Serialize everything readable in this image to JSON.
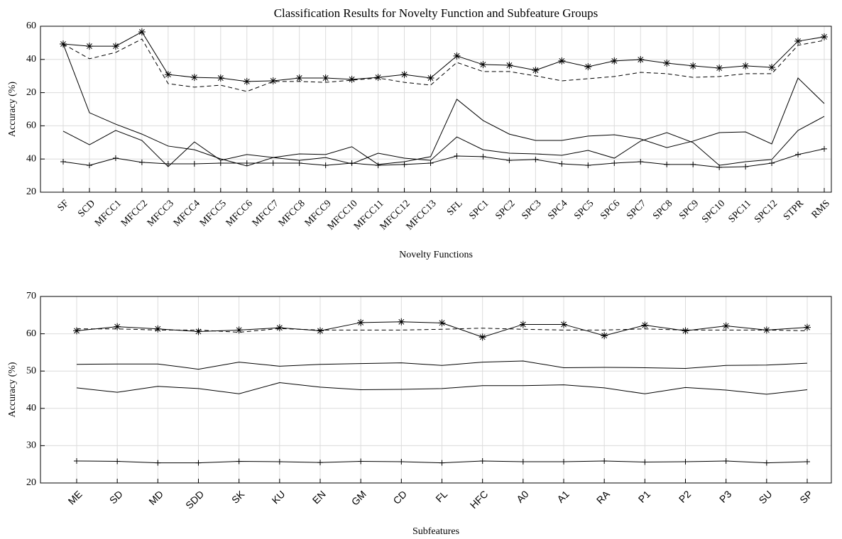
{
  "chart_data": [
    {
      "type": "line",
      "title": "Classification Results for Novelty Function and Subfeature Groups",
      "x_label": "Novelty Functions",
      "y_label": "Accuracy (%)",
      "categories": [
        "SF",
        "SCD",
        "MFCC1",
        "MFCC2",
        "MFCC3",
        "MFCC4",
        "MFCC5",
        "MFCC6",
        "MFCC7",
        "MFCC8",
        "MFCC9",
        "MFCC10",
        "MFCC11",
        "MFCC12",
        "MFCC13",
        "SFL",
        "SPC1",
        "SPC2",
        "SPC3",
        "SPC4",
        "SPC5",
        "SPC6",
        "SPC7",
        "SPC8",
        "SPC9",
        "SPC10",
        "SPC11",
        "SPC12",
        "STPR",
        "RMS"
      ],
      "ylim": [
        20,
        120
      ],
      "yticks": [
        20,
        40,
        60,
        {
          "value": 80,
          "label": "20"
        },
        {
          "value": 100,
          "label": "40"
        },
        {
          "value": 120,
          "label": "60"
        }
      ],
      "grid": true,
      "series": [
        {
          "color": "#000000",
          "marker": "*",
          "dashed": false,
          "values": [
            109.3,
            108.0,
            108.0,
            116.6,
            90.9,
            89.2,
            88.8,
            86.7,
            87.1,
            88.8,
            88.8,
            88.0,
            89.2,
            90.9,
            88.8,
            102.1,
            96.9,
            96.5,
            93.5,
            99.1,
            95.6,
            99.1,
            99.9,
            97.8,
            96.1,
            94.8,
            96.1,
            95.2,
            111.0,
            113.6
          ]
        },
        {
          "color": "#000000",
          "marker": "none",
          "dashed": true,
          "values": [
            109.3,
            100.4,
            104.2,
            112.3,
            85.4,
            83.3,
            84.5,
            80.7,
            86.7,
            86.7,
            86.2,
            87.5,
            88.8,
            86.2,
            84.5,
            98.2,
            92.7,
            92.7,
            90.1,
            87.1,
            88.4,
            89.7,
            92.2,
            91.4,
            89.2,
            89.7,
            91.4,
            91.4,
            108.5,
            111.5
          ]
        },
        {
          "color": "#000000",
          "marker": "none",
          "dashed": false,
          "values": [
            109.3,
            67.9,
            61.0,
            55.0,
            47.8,
            45.6,
            40.1,
            35.8,
            40.9,
            43.1,
            42.7,
            47.4,
            36.7,
            38.4,
            41.4,
            76.0,
            63.2,
            55.0,
            51.2,
            51.2,
            53.8,
            54.6,
            52.1,
            46.9,
            50.8,
            55.9,
            56.3,
            49.1,
            88.8,
            73.4
          ]
        },
        {
          "color": "#000000",
          "marker": "none",
          "dashed": false,
          "values": [
            56.8,
            48.6,
            57.2,
            51.2,
            35.4,
            50.3,
            39.2,
            42.7,
            40.9,
            39.2,
            40.9,
            37.1,
            43.5,
            40.5,
            39.2,
            53.3,
            45.6,
            43.5,
            43.1,
            42.2,
            45.2,
            40.5,
            50.8,
            55.9,
            49.9,
            36.2,
            38.4,
            39.7,
            57.2,
            65.7
          ]
        },
        {
          "color": "#000000",
          "marker": "+",
          "dashed": false,
          "values": [
            38.4,
            36.2,
            40.5,
            38.0,
            37.1,
            37.1,
            37.5,
            37.5,
            37.5,
            37.5,
            36.2,
            37.5,
            36.2,
            36.7,
            37.5,
            41.8,
            41.4,
            39.2,
            39.7,
            37.1,
            36.2,
            37.5,
            38.4,
            36.7,
            36.7,
            35.0,
            35.4,
            37.5,
            42.7,
            46.1
          ]
        }
      ]
    },
    {
      "type": "line",
      "x_label": "Subfeatures",
      "y_label": "Accuracy (%)",
      "categories": [
        "ME",
        "SD",
        "MD",
        "SDD",
        "SK",
        "KU",
        "EN",
        "GM",
        "CD",
        "FL",
        "HFC",
        "A0",
        "A1",
        "RA",
        "P1",
        "P2",
        "P3",
        "SU",
        "SP"
      ],
      "ylim": [
        20,
        70
      ],
      "yticks": [
        20,
        30,
        40,
        50,
        60,
        70
      ],
      "grid": true,
      "series": [
        {
          "color": "#000000",
          "marker": "*",
          "dashed": false,
          "values": [
            60.8,
            61.9,
            61.3,
            60.6,
            61.0,
            61.6,
            60.8,
            63.0,
            63.2,
            62.9,
            59.1,
            62.5,
            62.5,
            59.5,
            62.3,
            60.8,
            62.1,
            61.0,
            61.7
          ]
        },
        {
          "color": "#000000",
          "marker": "none",
          "dashed": true,
          "values": [
            61.3,
            61.3,
            61.0,
            61.0,
            60.4,
            61.4,
            61.0,
            61.0,
            61.0,
            61.2,
            61.5,
            61.2,
            61.0,
            61.0,
            61.3,
            61.0,
            61.0,
            61.0,
            60.8
          ]
        },
        {
          "color": "#000000",
          "marker": "none",
          "dashed": false,
          "values": [
            51.8,
            51.9,
            51.9,
            50.5,
            52.4,
            51.3,
            51.8,
            52.0,
            52.2,
            51.5,
            52.4,
            52.7,
            50.9,
            51.0,
            50.9,
            50.7,
            51.5,
            51.6,
            52.1
          ]
        },
        {
          "color": "#000000",
          "marker": "none",
          "dashed": false,
          "values": [
            45.5,
            44.3,
            45.9,
            45.3,
            43.9,
            46.9,
            45.7,
            45.0,
            45.1,
            45.3,
            46.1,
            46.1,
            46.3,
            45.5,
            43.9,
            45.6,
            44.9,
            43.8,
            45.0
          ]
        },
        {
          "color": "#000000",
          "marker": "+",
          "dashed": false,
          "values": [
            25.9,
            25.8,
            25.4,
            25.4,
            25.8,
            25.7,
            25.5,
            25.8,
            25.7,
            25.4,
            25.9,
            25.7,
            25.7,
            25.9,
            25.6,
            25.7,
            25.9,
            25.4,
            25.7
          ]
        }
      ]
    }
  ]
}
